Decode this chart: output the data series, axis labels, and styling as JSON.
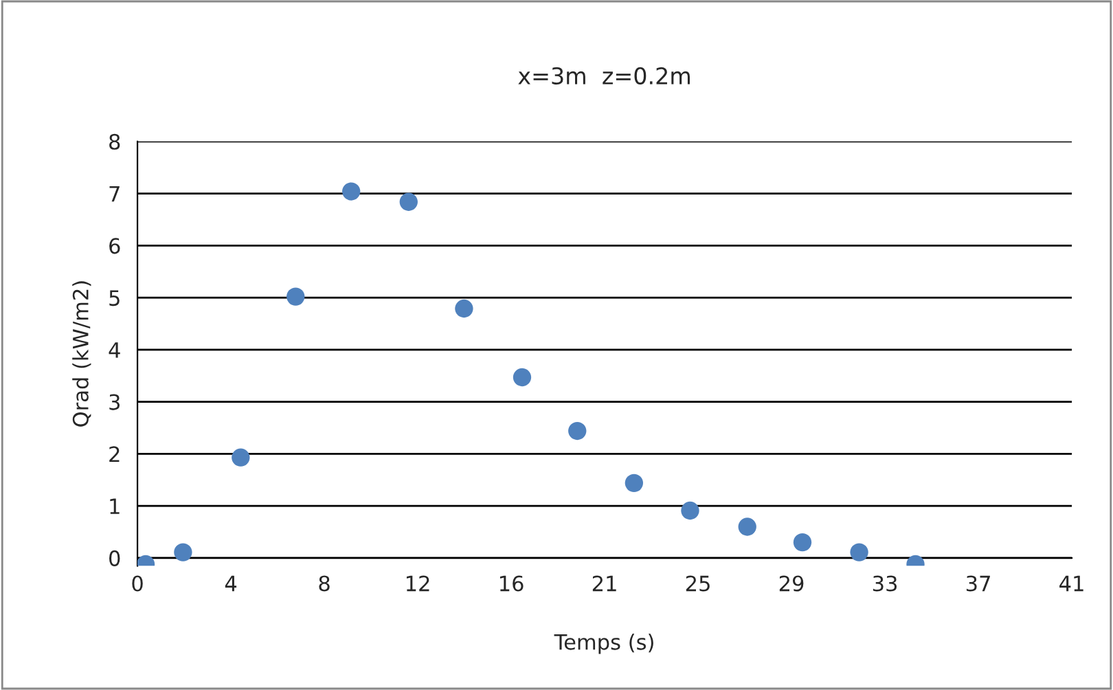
{
  "chart_data": {
    "type": "scatter",
    "title": "x=3m  z=0.2m",
    "xlabel": "Temps (s)",
    "ylabel": "Qrad (kW/m2)",
    "x": [
      0.36,
      2.0,
      4.53,
      6.94,
      9.38,
      11.9,
      14.33,
      16.88,
      19.3,
      21.79,
      24.25,
      26.76,
      29.18,
      31.67,
      34.14
    ],
    "series": [
      {
        "color": "#4f81bd",
        "values": [
          -0.12,
          0.11,
          1.93,
          5.02,
          7.04,
          6.84,
          4.79,
          3.47,
          2.44,
          1.44,
          0.91,
          0.6,
          0.3,
          0.11,
          -0.12
        ]
      }
    ],
    "xlim": [
      0,
      41
    ],
    "xticks": [
      0,
      {
        "value": 4.1,
        "label": "4"
      },
      {
        "value": 8.2,
        "label": "8"
      },
      {
        "value": 12.3,
        "label": "12"
      },
      {
        "value": 16.4,
        "label": "16"
      },
      {
        "value": 20.5,
        "label": "21"
      },
      {
        "value": 24.6,
        "label": "25"
      },
      {
        "value": 28.7,
        "label": "29"
      },
      {
        "value": 32.8,
        "label": "33"
      },
      {
        "value": 36.9,
        "label": "37"
      },
      41
    ],
    "ylim": [
      -0.15,
      8
    ],
    "yticks": [
      0,
      1,
      2,
      3,
      4,
      5,
      6,
      7,
      8
    ],
    "grid": "y",
    "marker": "circle",
    "legend": false
  }
}
